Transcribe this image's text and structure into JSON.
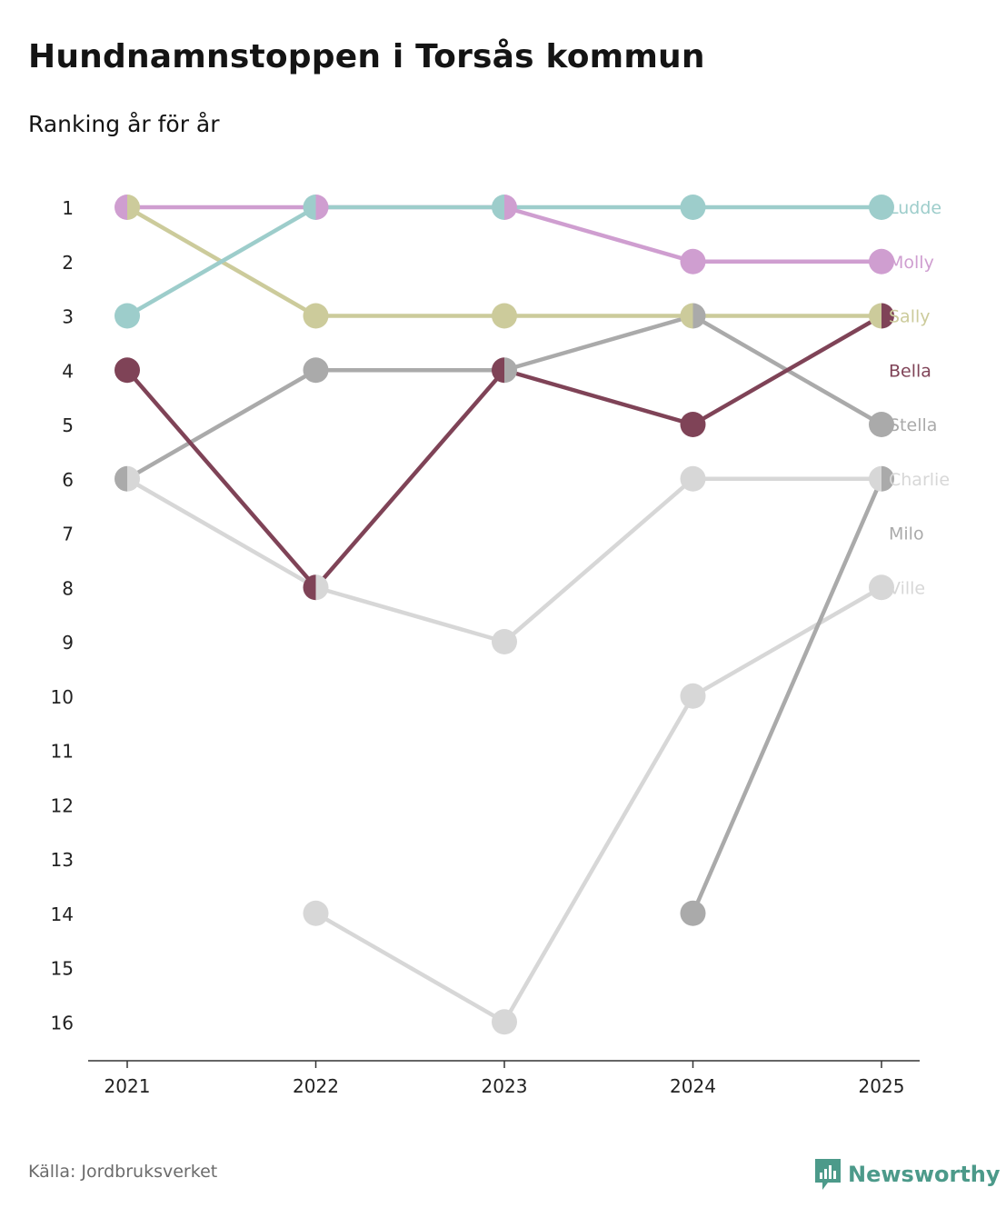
{
  "title": "Hundnamnstoppen i Torsås kommun",
  "subtitle": "Ranking år för år",
  "source": "Källa: Jordbruksverket",
  "brand": "Newsworthy",
  "chart_data": {
    "type": "line",
    "subtype": "bump",
    "title": "Hundnamnstoppen i Torsås kommun",
    "subtitle": "Ranking år för år",
    "xlabel": "",
    "ylabel": "",
    "x": [
      2021,
      2022,
      2023,
      2024,
      2025
    ],
    "y_ticks": [
      1,
      2,
      3,
      4,
      5,
      6,
      7,
      8,
      9,
      10,
      11,
      12,
      13,
      14,
      15,
      16
    ],
    "ylim": [
      1,
      16
    ],
    "y_inverted": true,
    "grid": false,
    "legend": "direct labels at right end",
    "series": [
      {
        "name": "Ludde",
        "color": "#9dcdcb",
        "values": [
          3,
          1,
          1,
          1,
          1
        ]
      },
      {
        "name": "Molly",
        "color": "#cf9ed0",
        "values": [
          1,
          1,
          1,
          2,
          2
        ]
      },
      {
        "name": "Sally",
        "color": "#cccb9b",
        "values": [
          1,
          3,
          3,
          3,
          3
        ]
      },
      {
        "name": "Bella",
        "color": "#7f4357",
        "values": [
          4,
          8,
          4,
          5,
          3
        ]
      },
      {
        "name": "Stella",
        "color": "#aaaaaa",
        "values": [
          6,
          4,
          4,
          3,
          5
        ]
      },
      {
        "name": "Charlie",
        "color": "#d7d7d7",
        "values": [
          6,
          8,
          9,
          6,
          6
        ]
      },
      {
        "name": "Milo",
        "color": "#aaaaaa",
        "values": [
          null,
          null,
          null,
          14,
          6
        ]
      },
      {
        "name": "Ville",
        "color": "#d7d7d7",
        "values": [
          null,
          14,
          16,
          10,
          8
        ]
      }
    ]
  }
}
